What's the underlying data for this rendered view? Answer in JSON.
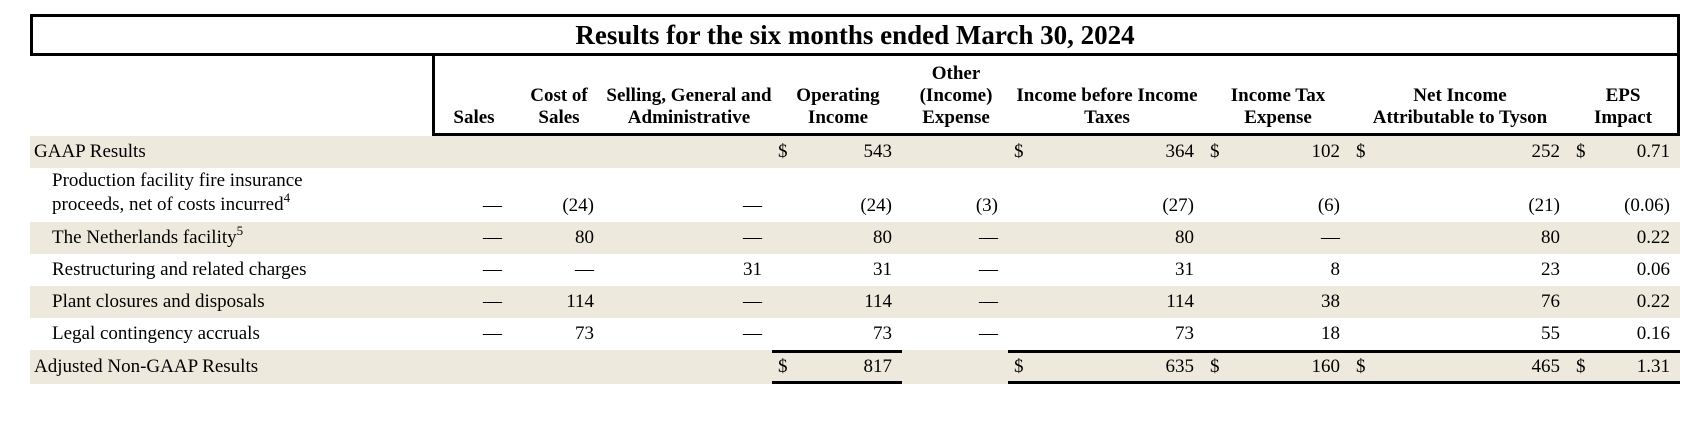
{
  "title": "Results for the six months ended March 30, 2024",
  "colors": {
    "row_shade": "#EDE9DC",
    "border": "#000000",
    "background": "#FFFFFF",
    "text": "#000000"
  },
  "table": {
    "headers": [
      "Sales",
      "Cost of Sales",
      "Selling, General and Administrative",
      "Operating Income",
      "Other (Income) Expense",
      "Income before Income Taxes",
      "Income Tax Expense",
      "Net Income Attributable to Tyson",
      "EPS Impact"
    ],
    "rows": [
      {
        "label": "GAAP Results",
        "sup": "",
        "cells": [
          {
            "d": "",
            "v": ""
          },
          {
            "d": "",
            "v": ""
          },
          {
            "d": "",
            "v": ""
          },
          {
            "d": "$",
            "v": "543"
          },
          {
            "d": "",
            "v": ""
          },
          {
            "d": "$",
            "v": "364"
          },
          {
            "d": "$",
            "v": "102"
          },
          {
            "d": "$",
            "v": "252"
          },
          {
            "d": "$",
            "v": "0.71"
          }
        ]
      },
      {
        "label": "Production facility fire insurance proceeds, net of costs incurred",
        "sup": "4",
        "cells": [
          {
            "d": "",
            "v": "—"
          },
          {
            "d": "",
            "v": "(24)"
          },
          {
            "d": "",
            "v": "—"
          },
          {
            "d": "",
            "v": "(24)"
          },
          {
            "d": "",
            "v": "(3)"
          },
          {
            "d": "",
            "v": "(27)"
          },
          {
            "d": "",
            "v": "(6)"
          },
          {
            "d": "",
            "v": "(21)"
          },
          {
            "d": "",
            "v": "(0.06)"
          }
        ]
      },
      {
        "label": "The Netherlands facility",
        "sup": "5",
        "cells": [
          {
            "d": "",
            "v": "—"
          },
          {
            "d": "",
            "v": "80"
          },
          {
            "d": "",
            "v": "—"
          },
          {
            "d": "",
            "v": "80"
          },
          {
            "d": "",
            "v": "—"
          },
          {
            "d": "",
            "v": "80"
          },
          {
            "d": "",
            "v": "—"
          },
          {
            "d": "",
            "v": "80"
          },
          {
            "d": "",
            "v": "0.22"
          }
        ]
      },
      {
        "label": "Restructuring and related charges",
        "sup": "",
        "cells": [
          {
            "d": "",
            "v": "—"
          },
          {
            "d": "",
            "v": "—"
          },
          {
            "d": "",
            "v": "31"
          },
          {
            "d": "",
            "v": "31"
          },
          {
            "d": "",
            "v": "—"
          },
          {
            "d": "",
            "v": "31"
          },
          {
            "d": "",
            "v": "8"
          },
          {
            "d": "",
            "v": "23"
          },
          {
            "d": "",
            "v": "0.06"
          }
        ]
      },
      {
        "label": "Plant closures and disposals",
        "sup": "",
        "cells": [
          {
            "d": "",
            "v": "—"
          },
          {
            "d": "",
            "v": "114"
          },
          {
            "d": "",
            "v": "—"
          },
          {
            "d": "",
            "v": "114"
          },
          {
            "d": "",
            "v": "—"
          },
          {
            "d": "",
            "v": "114"
          },
          {
            "d": "",
            "v": "38"
          },
          {
            "d": "",
            "v": "76"
          },
          {
            "d": "",
            "v": "0.22"
          }
        ]
      },
      {
        "label": "Legal contingency accruals",
        "sup": "",
        "cells": [
          {
            "d": "",
            "v": "—"
          },
          {
            "d": "",
            "v": "73"
          },
          {
            "d": "",
            "v": "—"
          },
          {
            "d": "",
            "v": "73"
          },
          {
            "d": "",
            "v": "—"
          },
          {
            "d": "",
            "v": "73"
          },
          {
            "d": "",
            "v": "18"
          },
          {
            "d": "",
            "v": "55"
          },
          {
            "d": "",
            "v": "0.16"
          }
        ]
      },
      {
        "label": "Adjusted Non-GAAP Results",
        "sup": "",
        "cells": [
          {
            "d": "",
            "v": ""
          },
          {
            "d": "",
            "v": ""
          },
          {
            "d": "",
            "v": ""
          },
          {
            "d": "$",
            "v": "817"
          },
          {
            "d": "",
            "v": ""
          },
          {
            "d": "$",
            "v": "635"
          },
          {
            "d": "$",
            "v": "160"
          },
          {
            "d": "$",
            "v": "465"
          },
          {
            "d": "$",
            "v": "1.31"
          }
        ]
      }
    ]
  }
}
